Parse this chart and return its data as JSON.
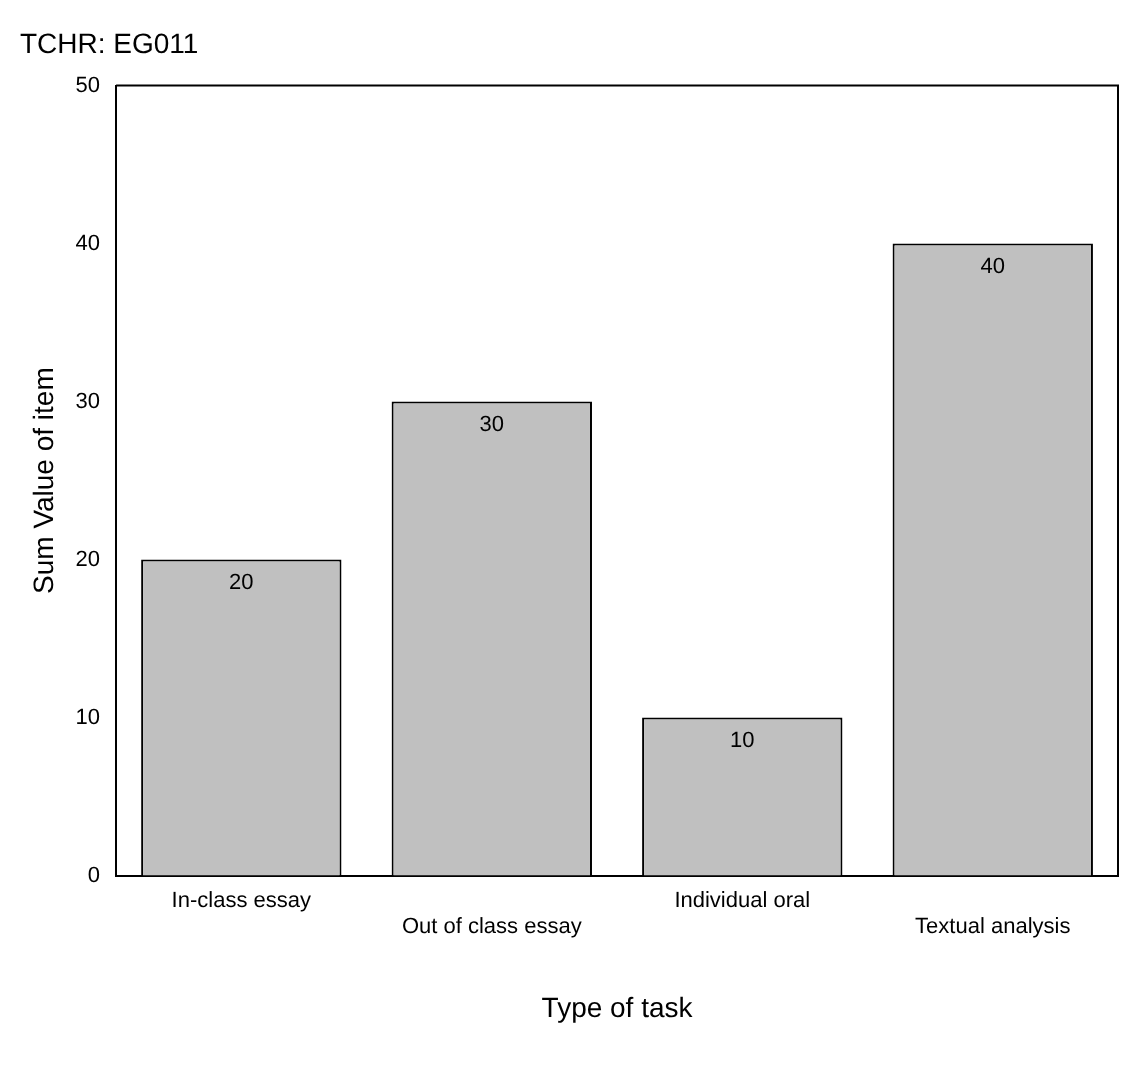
{
  "chart_data": {
    "type": "bar",
    "title": "TCHR: EG011",
    "xlabel": "Type of task",
    "ylabel": "Sum Value of item",
    "categories": [
      "In-class essay",
      "Out of class essay",
      "Individual oral",
      "Textual analysis"
    ],
    "values": [
      20,
      30,
      10,
      40
    ],
    "color": "#c0c0c0",
    "ylim": [
      0,
      50
    ],
    "yticks": [
      0,
      10,
      20,
      30,
      40,
      50
    ],
    "grid": false,
    "legend": false,
    "data_labels": true
  }
}
